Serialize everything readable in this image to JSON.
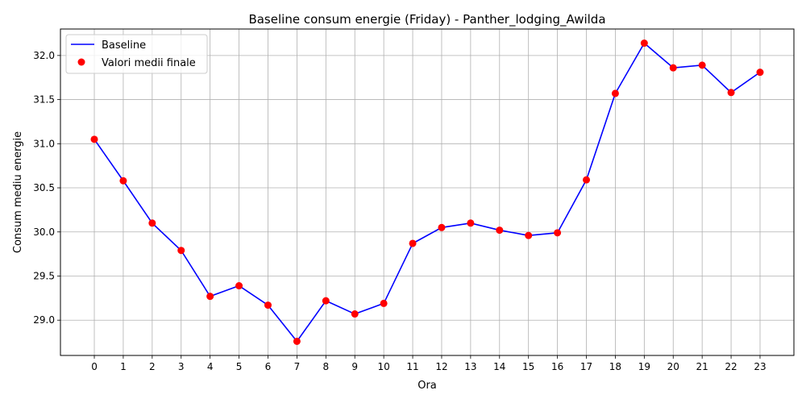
{
  "chart_data": {
    "type": "line",
    "title": "Baseline consum energie (Friday) - Panther_lodging_Awilda",
    "xlabel": "Ora",
    "ylabel": "Consum mediu energie",
    "x": [
      0,
      1,
      2,
      3,
      4,
      5,
      6,
      7,
      8,
      9,
      10,
      11,
      12,
      13,
      14,
      15,
      16,
      17,
      18,
      19,
      20,
      21,
      22,
      23
    ],
    "x_tick_labels": [
      "0",
      "1",
      "2",
      "3",
      "4",
      "5",
      "6",
      "7",
      "8",
      "9",
      "10",
      "11",
      "12",
      "13",
      "14",
      "15",
      "16",
      "17",
      "18",
      "19",
      "20",
      "21",
      "22",
      "23"
    ],
    "y_ticks": [
      29.0,
      29.5,
      30.0,
      30.5,
      31.0,
      31.5,
      32.0
    ],
    "y_tick_labels": [
      "29.0",
      "29.5",
      "30.0",
      "30.5",
      "31.0",
      "31.5",
      "32.0"
    ],
    "ylim": [
      28.6,
      32.3
    ],
    "xlim": [
      -1.17,
      24.17
    ],
    "grid": true,
    "legend_position": "top-left",
    "series": [
      {
        "name": "Baseline",
        "kind": "line",
        "color": "#0000ff",
        "values": [
          31.05,
          30.58,
          30.1,
          29.79,
          29.27,
          29.39,
          29.17,
          28.76,
          29.22,
          29.07,
          29.19,
          29.87,
          30.05,
          30.1,
          30.02,
          29.96,
          29.99,
          30.59,
          31.57,
          32.14,
          31.86,
          31.89,
          31.58,
          31.81
        ]
      },
      {
        "name": "Valori medii finale",
        "kind": "scatter",
        "color": "#ff0000",
        "values": [
          31.05,
          30.58,
          30.1,
          29.79,
          29.27,
          29.39,
          29.17,
          28.76,
          29.22,
          29.07,
          29.19,
          29.87,
          30.05,
          30.1,
          30.02,
          29.96,
          29.99,
          30.59,
          31.57,
          32.14,
          31.86,
          31.89,
          31.58,
          31.81
        ]
      }
    ]
  }
}
